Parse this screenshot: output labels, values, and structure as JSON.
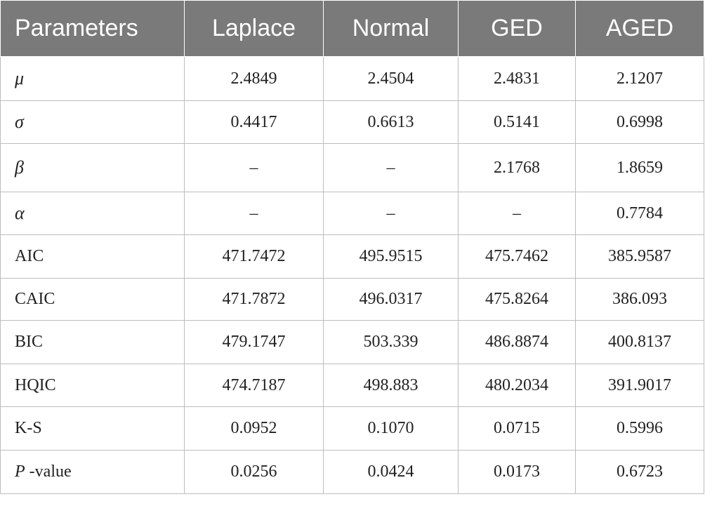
{
  "table": {
    "headers": [
      "Parameters",
      "Laplace",
      "Normal",
      "GED",
      "AGED"
    ],
    "rows": [
      {
        "label": "μ",
        "values": [
          "2.4849",
          "2.4504",
          "2.4831",
          "2.1207"
        ]
      },
      {
        "label": "σ",
        "values": [
          "0.4417",
          "0.6613",
          "0.5141",
          "0.6998"
        ]
      },
      {
        "label": "β",
        "values": [
          "–",
          "–",
          "2.1768",
          "1.8659"
        ]
      },
      {
        "label": "α",
        "values": [
          "–",
          "–",
          "–",
          "0.7784"
        ]
      },
      {
        "label": "AIC",
        "values": [
          "471.7472",
          "495.9515",
          "475.7462",
          "385.9587"
        ]
      },
      {
        "label": "CAIC",
        "values": [
          "471.7872",
          "496.0317",
          "475.8264",
          "386.093"
        ]
      },
      {
        "label": "BIC",
        "values": [
          "479.1747",
          "503.339",
          "486.8874",
          "400.8137"
        ]
      },
      {
        "label": "HQIC",
        "values": [
          "474.7187",
          "498.883",
          "480.2034",
          "391.9017"
        ]
      },
      {
        "label": "K-S",
        "values": [
          "0.0952",
          "0.1070",
          "0.0715",
          "0.5996"
        ]
      },
      {
        "label_italic": "P",
        "label_suffix": " -value",
        "values": [
          "0.0256",
          "0.0424",
          "0.0173",
          "0.6723"
        ]
      }
    ]
  },
  "colors": {
    "header_bg": "#7a7a7a",
    "header_text": "#ffffff",
    "grid": "#bdbdbd",
    "body_text": "#222222"
  }
}
